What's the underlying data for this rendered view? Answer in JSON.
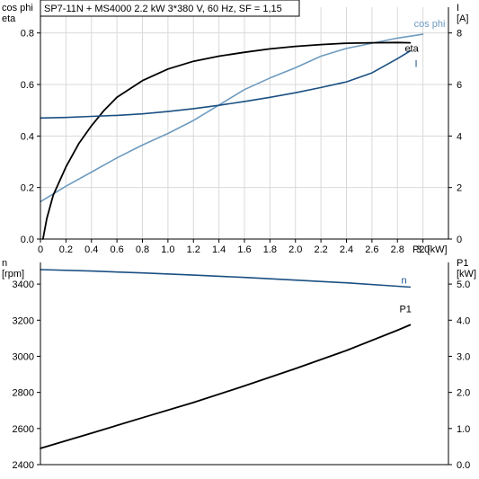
{
  "header": {
    "title": "SP7-11N + MS4000   2.2 kW   3*380 V, 60 Hz, SF = 1,15"
  },
  "colors": {
    "eta": "#000000",
    "cos_phi": "#6e9bbf",
    "current": "#1a4f82",
    "speed": "#1a4f82",
    "p1": "#000000",
    "axis": "#000000",
    "grid": "#d9d9d9"
  },
  "chart_data": [
    {
      "type": "line",
      "xlabel": "P2 [kW]",
      "xlim": [
        0,
        3.2
      ],
      "x_ticks": [
        "0",
        "0.2",
        "0.4",
        "0.6",
        "0.8",
        "1.0",
        "1.2",
        "1.4",
        "1.6",
        "1.8",
        "2.0",
        "2.2",
        "2.4",
        "2.6",
        "2.8",
        "3.0"
      ],
      "left_axis": {
        "label_lines": [
          "cos phi",
          "eta"
        ],
        "ylim": [
          0,
          0.9
        ],
        "ticks": [
          "0.0",
          "0.2",
          "0.4",
          "0.6",
          "0.8"
        ]
      },
      "right_axis": {
        "label_lines": [
          "I",
          "[A]"
        ],
        "ylim": [
          0,
          9
        ],
        "ticks": [
          "0",
          "2",
          "4",
          "6",
          "8"
        ]
      },
      "grid": true,
      "series": [
        {
          "name": "cos phi",
          "axis": "left",
          "points": [
            [
              0,
              0.145
            ],
            [
              0.2,
              0.205
            ],
            [
              0.4,
              0.26
            ],
            [
              0.6,
              0.315
            ],
            [
              0.8,
              0.365
            ],
            [
              1.0,
              0.41
            ],
            [
              1.2,
              0.46
            ],
            [
              1.4,
              0.52
            ],
            [
              1.6,
              0.58
            ],
            [
              1.8,
              0.625
            ],
            [
              2.0,
              0.665
            ],
            [
              2.2,
              0.71
            ],
            [
              2.4,
              0.74
            ],
            [
              2.6,
              0.76
            ],
            [
              2.8,
              0.78
            ],
            [
              3.0,
              0.795
            ]
          ]
        },
        {
          "name": "eta",
          "axis": "left",
          "points": [
            [
              0.02,
              0.0
            ],
            [
              0.05,
              0.08
            ],
            [
              0.1,
              0.17
            ],
            [
              0.2,
              0.28
            ],
            [
              0.3,
              0.37
            ],
            [
              0.4,
              0.44
            ],
            [
              0.5,
              0.5
            ],
            [
              0.6,
              0.55
            ],
            [
              0.8,
              0.615
            ],
            [
              1.0,
              0.66
            ],
            [
              1.2,
              0.69
            ],
            [
              1.4,
              0.71
            ],
            [
              1.6,
              0.725
            ],
            [
              1.8,
              0.738
            ],
            [
              2.0,
              0.748
            ],
            [
              2.2,
              0.755
            ],
            [
              2.4,
              0.76
            ],
            [
              2.6,
              0.762
            ],
            [
              2.8,
              0.763
            ],
            [
              2.9,
              0.762
            ]
          ]
        },
        {
          "name": "I",
          "axis": "right",
          "points": [
            [
              0,
              4.7
            ],
            [
              0.2,
              4.72
            ],
            [
              0.4,
              4.76
            ],
            [
              0.6,
              4.8
            ],
            [
              0.8,
              4.86
            ],
            [
              1.0,
              4.95
            ],
            [
              1.2,
              5.06
            ],
            [
              1.4,
              5.19
            ],
            [
              1.6,
              5.34
            ],
            [
              1.8,
              5.5
            ],
            [
              2.0,
              5.68
            ],
            [
              2.2,
              5.88
            ],
            [
              2.4,
              6.1
            ],
            [
              2.6,
              6.45
            ],
            [
              2.8,
              7.0
            ],
            [
              2.9,
              7.3
            ]
          ]
        }
      ]
    },
    {
      "type": "line",
      "xlim": [
        0,
        3.2
      ],
      "left_axis": {
        "label_lines": [
          "n",
          "[rpm]"
        ],
        "ylim": [
          2400,
          3520
        ],
        "ticks": [
          "2400",
          "2600",
          "2800",
          "3000",
          "3200",
          "3400"
        ]
      },
      "right_axis": {
        "label_lines": [
          "P1",
          "[kW]"
        ],
        "ylim": [
          0,
          5.6
        ],
        "ticks": [
          "0.0",
          "1.0",
          "2.0",
          "3.0",
          "4.0",
          "5.0"
        ]
      },
      "grid": false,
      "series": [
        {
          "name": "n",
          "axis": "left",
          "points": [
            [
              0,
              3480
            ],
            [
              0.4,
              3472
            ],
            [
              0.8,
              3462
            ],
            [
              1.2,
              3450
            ],
            [
              1.6,
              3437
            ],
            [
              2.0,
              3422
            ],
            [
              2.4,
              3407
            ],
            [
              2.8,
              3388
            ],
            [
              2.9,
              3383
            ]
          ]
        },
        {
          "name": "P1",
          "axis": "right",
          "points": [
            [
              0,
              0.45
            ],
            [
              0.4,
              0.87
            ],
            [
              0.8,
              1.3
            ],
            [
              1.2,
              1.72
            ],
            [
              1.6,
              2.18
            ],
            [
              2.0,
              2.66
            ],
            [
              2.4,
              3.16
            ],
            [
              2.8,
              3.72
            ],
            [
              2.9,
              3.87
            ]
          ]
        }
      ]
    }
  ]
}
